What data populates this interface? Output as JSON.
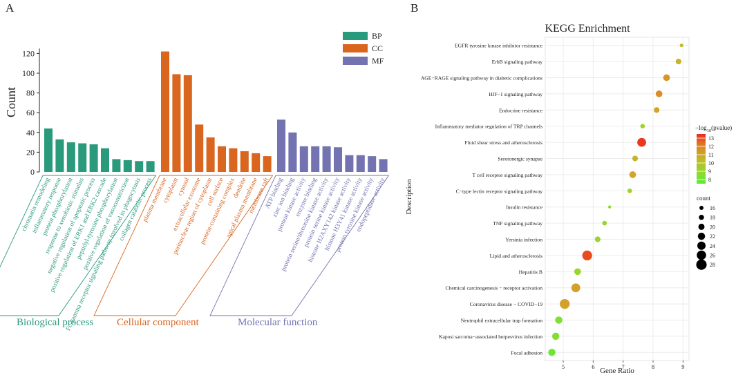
{
  "panel_a": {
    "letter": "A",
    "ylabel": "Count",
    "legend": [
      {
        "key": "BP",
        "color": "#2a9a7c"
      },
      {
        "key": "CC",
        "color": "#d9651f"
      },
      {
        "key": "MF",
        "color": "#7273b0"
      }
    ],
    "groups": [
      {
        "label": "Biological process",
        "color": "#2a9a7c"
      },
      {
        "label": "Cellular component",
        "color": "#d9651f"
      },
      {
        "label": "Molecular function",
        "color": "#7273b0"
      }
    ]
  },
  "panel_b": {
    "letter": "B"
  },
  "chart_data": [
    {
      "type": "bar",
      "ylabel": "Count",
      "yticks": [
        0,
        20,
        40,
        60,
        80,
        100,
        120
      ],
      "ylim": [
        0,
        125
      ],
      "series": [
        {
          "name": "BP",
          "categories": [
            "chromatin remodeling",
            "inflammatory response",
            "protein phosphorylation",
            "response to xenobiotic stimulus",
            "negative regulation of apoptotic process",
            "positive regulation of ERK1 and ERK2 cascade",
            "peptidyl-tyrosine phosphorylation",
            "positive regulation of vasoconstriction",
            "Fc-gamma receptor signaling pathway involved in phagocytosis",
            "collagen catabolic process"
          ],
          "values": [
            44,
            33,
            30,
            29,
            28,
            24,
            13,
            12,
            11,
            11
          ]
        },
        {
          "name": "CC",
          "categories": [
            "plasma membrane",
            "cytoplasm",
            "cytosol",
            "extracellular exosome",
            "perinuclear region of cytoplasm",
            "cell surface",
            "protein-containing complex",
            "dendrite",
            "apical plasma membrane",
            "membrane raft"
          ],
          "values": [
            122,
            99,
            98,
            48,
            35,
            26,
            24,
            21,
            19,
            16
          ]
        },
        {
          "name": "MF",
          "categories": [
            "ATP binding",
            "zinc ion binding",
            "protein kinase activity",
            "enzyme binding",
            "protein serine/threonine kinase activity",
            "protein serine kinase activity",
            "histone H2AXY142 kinase activity",
            "histone H3Y41 kinase activity",
            "protein tyrosine kinase activity",
            "endopeptidase activity"
          ],
          "values": [
            53,
            40,
            26,
            26,
            26,
            25,
            17,
            17,
            16,
            13
          ]
        }
      ]
    },
    {
      "type": "scatter",
      "title": "KEGG Enrichment",
      "xlabel": "Gene Ratio",
      "ylabel": "Description",
      "xlim": [
        4.4,
        9.2
      ],
      "xticks": [
        5,
        6,
        7,
        8,
        9
      ],
      "color_label_pre": "−log",
      "color_label_sub": "10",
      "color_label_post": "(pvalue)",
      "color_ticks": [
        8,
        9,
        10,
        11,
        12,
        13
      ],
      "color_range": [
        7.5,
        13.5
      ],
      "size_label": "count",
      "size_ticks": [
        16,
        18,
        20,
        22,
        24,
        26,
        28
      ],
      "points": [
        {
          "term": "EGFR tyrosine kinase inhibitor resistance",
          "x": 8.95,
          "log10p": 10.3,
          "count": 15
        },
        {
          "term": "ErbB signaling pathway",
          "x": 8.85,
          "log10p": 10.6,
          "count": 19
        },
        {
          "term": "AGE−RAGE signaling pathway in diabetic complications",
          "x": 8.45,
          "log10p": 11.6,
          "count": 21
        },
        {
          "term": "HIF−1 signaling pathway",
          "x": 8.2,
          "log10p": 11.8,
          "count": 21
        },
        {
          "term": "Endocrine resistance",
          "x": 8.12,
          "log10p": 11.2,
          "count": 19
        },
        {
          "term": "Inflammatory mediator regulation of TRP channels",
          "x": 7.65,
          "log10p": 9.4,
          "count": 17
        },
        {
          "term": "Fluid shear stress and atherosclerosis",
          "x": 7.62,
          "log10p": 13.3,
          "count": 25
        },
        {
          "term": "Serotonergic synapse",
          "x": 7.4,
          "log10p": 10.5,
          "count": 19
        },
        {
          "term": "T cell receptor signaling pathway",
          "x": 7.32,
          "log10p": 11.2,
          "count": 21
        },
        {
          "term": "C−type lectin receptor signaling pathway",
          "x": 7.22,
          "log10p": 9.3,
          "count": 17
        },
        {
          "term": "Insulin resistance",
          "x": 6.55,
          "log10p": 8.6,
          "count": 14
        },
        {
          "term": "TNF signaling pathway",
          "x": 6.38,
          "log10p": 8.9,
          "count": 17
        },
        {
          "term": "Yersinia infection",
          "x": 6.15,
          "log10p": 9.1,
          "count": 19
        },
        {
          "term": "Lipid and atherosclerosis",
          "x": 5.8,
          "log10p": 13.0,
          "count": 27
        },
        {
          "term": "Hepatitis B",
          "x": 5.48,
          "log10p": 9.0,
          "count": 21
        },
        {
          "term": "Chemical carcinogenesis − receptor activation",
          "x": 5.42,
          "log10p": 11.3,
          "count": 25
        },
        {
          "term": "Coronavirus disease − COVID−19",
          "x": 5.05,
          "log10p": 11.3,
          "count": 27
        },
        {
          "term": "Neutrophil extracellular trap formation",
          "x": 4.85,
          "log10p": 8.4,
          "count": 22
        },
        {
          "term": "Kaposi sarcoma−associated herpesvirus infection",
          "x": 4.75,
          "log10p": 8.5,
          "count": 22
        },
        {
          "term": "Focal adhesion",
          "x": 4.62,
          "log10p": 8.0,
          "count": 22
        }
      ]
    }
  ]
}
